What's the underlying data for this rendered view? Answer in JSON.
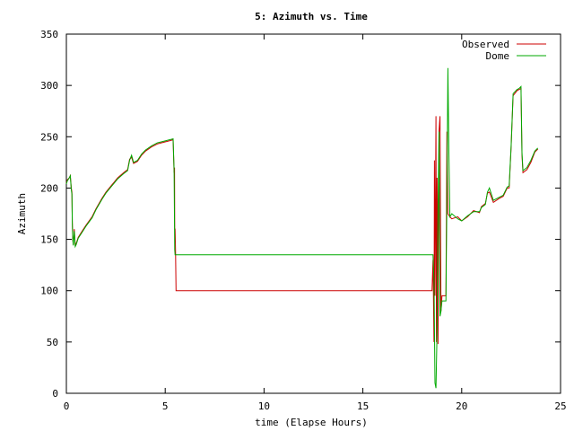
{
  "chart_data": {
    "type": "line",
    "title": "5: Azimuth vs. Time",
    "xlabel": "time (Elapse Hours)",
    "ylabel": "Azimuth",
    "xlim": [
      0,
      25
    ],
    "ylim": [
      0,
      350
    ],
    "xticks": [
      0,
      5,
      10,
      15,
      20,
      25
    ],
    "yticks": [
      0,
      50,
      100,
      150,
      200,
      250,
      300,
      350
    ],
    "xtick_labels": [
      "0",
      "5",
      "10",
      "15",
      "20",
      "25"
    ],
    "ytick_labels": [
      "0",
      "50",
      "100",
      "150",
      "200",
      "250",
      "300",
      "350"
    ],
    "grid": false,
    "legend_position": "top-right",
    "series": [
      {
        "name": "Observed",
        "color": "#cc0000",
        "points": [
          [
            0.0,
            205
          ],
          [
            0.05,
            208
          ],
          [
            0.15,
            210
          ],
          [
            0.2,
            212
          ],
          [
            0.25,
            200
          ],
          [
            0.28,
            196
          ],
          [
            0.3,
            168
          ],
          [
            0.32,
            150
          ],
          [
            0.35,
            145
          ],
          [
            0.4,
            160
          ],
          [
            0.45,
            144
          ],
          [
            0.5,
            146
          ],
          [
            0.6,
            152
          ],
          [
            0.8,
            158
          ],
          [
            1.0,
            164
          ],
          [
            1.3,
            172
          ],
          [
            1.5,
            180
          ],
          [
            1.8,
            190
          ],
          [
            2.0,
            196
          ],
          [
            2.3,
            203
          ],
          [
            2.6,
            210
          ],
          [
            2.9,
            215
          ],
          [
            3.1,
            218
          ],
          [
            3.2,
            228
          ],
          [
            3.3,
            230
          ],
          [
            3.4,
            224
          ],
          [
            3.6,
            226
          ],
          [
            3.8,
            232
          ],
          [
            4.0,
            236
          ],
          [
            4.3,
            240
          ],
          [
            4.6,
            243
          ],
          [
            4.8,
            244
          ],
          [
            5.0,
            245
          ],
          [
            5.2,
            246
          ],
          [
            5.4,
            247
          ],
          [
            5.45,
            215
          ],
          [
            5.47,
            220
          ],
          [
            5.48,
            160
          ],
          [
            5.5,
            160
          ],
          [
            5.52,
            140
          ],
          [
            5.55,
            100
          ],
          [
            18.5,
            100
          ],
          [
            18.55,
            130
          ],
          [
            18.6,
            50
          ],
          [
            18.62,
            227
          ],
          [
            18.65,
            95
          ],
          [
            18.7,
            270
          ],
          [
            18.72,
            50
          ],
          [
            18.75,
            210
          ],
          [
            18.8,
            48
          ],
          [
            18.85,
            255
          ],
          [
            18.9,
            270
          ],
          [
            18.95,
            80
          ],
          [
            19.0,
            95
          ],
          [
            19.1,
            95
          ],
          [
            19.2,
            95
          ],
          [
            19.25,
            255
          ],
          [
            19.3,
            175
          ],
          [
            19.4,
            172
          ],
          [
            19.5,
            170
          ],
          [
            19.8,
            172
          ],
          [
            20.0,
            168
          ],
          [
            20.3,
            172
          ],
          [
            20.6,
            178
          ],
          [
            20.9,
            176
          ],
          [
            21.0,
            182
          ],
          [
            21.2,
            185
          ],
          [
            21.3,
            195
          ],
          [
            21.4,
            196
          ],
          [
            21.6,
            186
          ],
          [
            21.9,
            190
          ],
          [
            22.1,
            192
          ],
          [
            22.3,
            200
          ],
          [
            22.4,
            200
          ],
          [
            22.5,
            240
          ],
          [
            22.6,
            290
          ],
          [
            22.8,
            295
          ],
          [
            22.9,
            296
          ],
          [
            23.0,
            297
          ],
          [
            23.05,
            232
          ],
          [
            23.1,
            215
          ],
          [
            23.3,
            218
          ],
          [
            23.5,
            225
          ],
          [
            23.7,
            235
          ],
          [
            23.85,
            238
          ]
        ]
      },
      {
        "name": "Dome",
        "color": "#00aa00",
        "points": [
          [
            0.0,
            204
          ],
          [
            0.05,
            207
          ],
          [
            0.15,
            210
          ],
          [
            0.2,
            212
          ],
          [
            0.25,
            198
          ],
          [
            0.28,
            194
          ],
          [
            0.3,
            166
          ],
          [
            0.32,
            152
          ],
          [
            0.35,
            144
          ],
          [
            0.4,
            158
          ],
          [
            0.45,
            143
          ],
          [
            0.5,
            145
          ],
          [
            0.6,
            151
          ],
          [
            0.8,
            157
          ],
          [
            1.0,
            163
          ],
          [
            1.3,
            171
          ],
          [
            1.5,
            179
          ],
          [
            1.8,
            189
          ],
          [
            2.0,
            195
          ],
          [
            2.3,
            202
          ],
          [
            2.6,
            209
          ],
          [
            2.9,
            214
          ],
          [
            3.1,
            217
          ],
          [
            3.2,
            227
          ],
          [
            3.3,
            232
          ],
          [
            3.4,
            225
          ],
          [
            3.6,
            227
          ],
          [
            3.8,
            233
          ],
          [
            4.0,
            237
          ],
          [
            4.3,
            241
          ],
          [
            4.6,
            244
          ],
          [
            4.8,
            245
          ],
          [
            5.0,
            246
          ],
          [
            5.2,
            247
          ],
          [
            5.4,
            248
          ],
          [
            5.45,
            218
          ],
          [
            5.48,
            140
          ],
          [
            5.5,
            135
          ],
          [
            18.55,
            135
          ],
          [
            18.6,
            110
          ],
          [
            18.65,
            10
          ],
          [
            18.7,
            5
          ],
          [
            18.75,
            60
          ],
          [
            18.8,
            180
          ],
          [
            18.85,
            255
          ],
          [
            18.9,
            75
          ],
          [
            18.95,
            80
          ],
          [
            19.0,
            90
          ],
          [
            19.1,
            90
          ],
          [
            19.2,
            90
          ],
          [
            19.25,
            190
          ],
          [
            19.3,
            317
          ],
          [
            19.35,
            235
          ],
          [
            19.4,
            172
          ],
          [
            19.5,
            175
          ],
          [
            19.8,
            170
          ],
          [
            20.0,
            168
          ],
          [
            20.3,
            173
          ],
          [
            20.6,
            177
          ],
          [
            20.9,
            177
          ],
          [
            21.0,
            181
          ],
          [
            21.2,
            184
          ],
          [
            21.3,
            196
          ],
          [
            21.4,
            200
          ],
          [
            21.6,
            188
          ],
          [
            21.9,
            191
          ],
          [
            22.1,
            193
          ],
          [
            22.3,
            201
          ],
          [
            22.4,
            202
          ],
          [
            22.5,
            241
          ],
          [
            22.6,
            292
          ],
          [
            22.8,
            296
          ],
          [
            22.9,
            297
          ],
          [
            23.0,
            299
          ],
          [
            23.05,
            235
          ],
          [
            23.1,
            217
          ],
          [
            23.3,
            220
          ],
          [
            23.5,
            227
          ],
          [
            23.7,
            236
          ],
          [
            23.85,
            239
          ]
        ]
      }
    ]
  }
}
